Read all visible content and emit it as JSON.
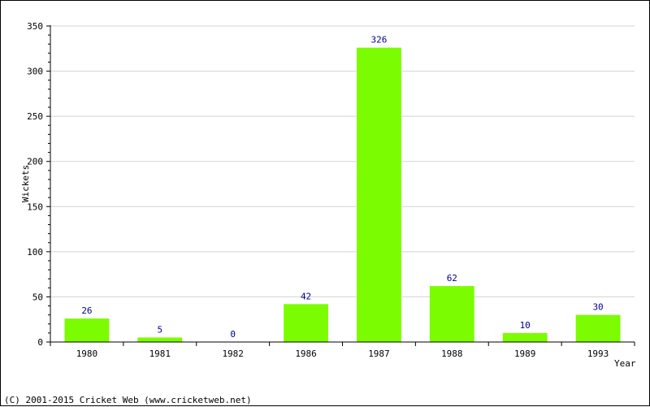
{
  "chart_data": {
    "type": "bar",
    "categories": [
      "1980",
      "1981",
      "1982",
      "1986",
      "1987",
      "1988",
      "1989",
      "1993"
    ],
    "values": [
      26,
      5,
      0,
      42,
      326,
      62,
      10,
      30
    ],
    "data_labels": [
      "26",
      "5",
      "0",
      "42",
      "326",
      "62",
      "10",
      "30"
    ],
    "title": "",
    "xlabel": "Year",
    "ylabel": "Wickets",
    "ylim": [
      0,
      350
    ],
    "yticks": [
      0,
      50,
      100,
      150,
      200,
      250,
      300,
      350
    ],
    "ytick_labels": [
      "0",
      "50",
      "100",
      "150",
      "200",
      "250",
      "300",
      "350"
    ],
    "grid": true,
    "legend": "none",
    "colors": {
      "bar": "#7cfc00",
      "data_label": "#00008b",
      "grid": "#d3d3d3",
      "axis": "#000000"
    }
  },
  "footer": {
    "copyright": "(C) 2001-2015 Cricket Web (www.cricketweb.net)"
  }
}
